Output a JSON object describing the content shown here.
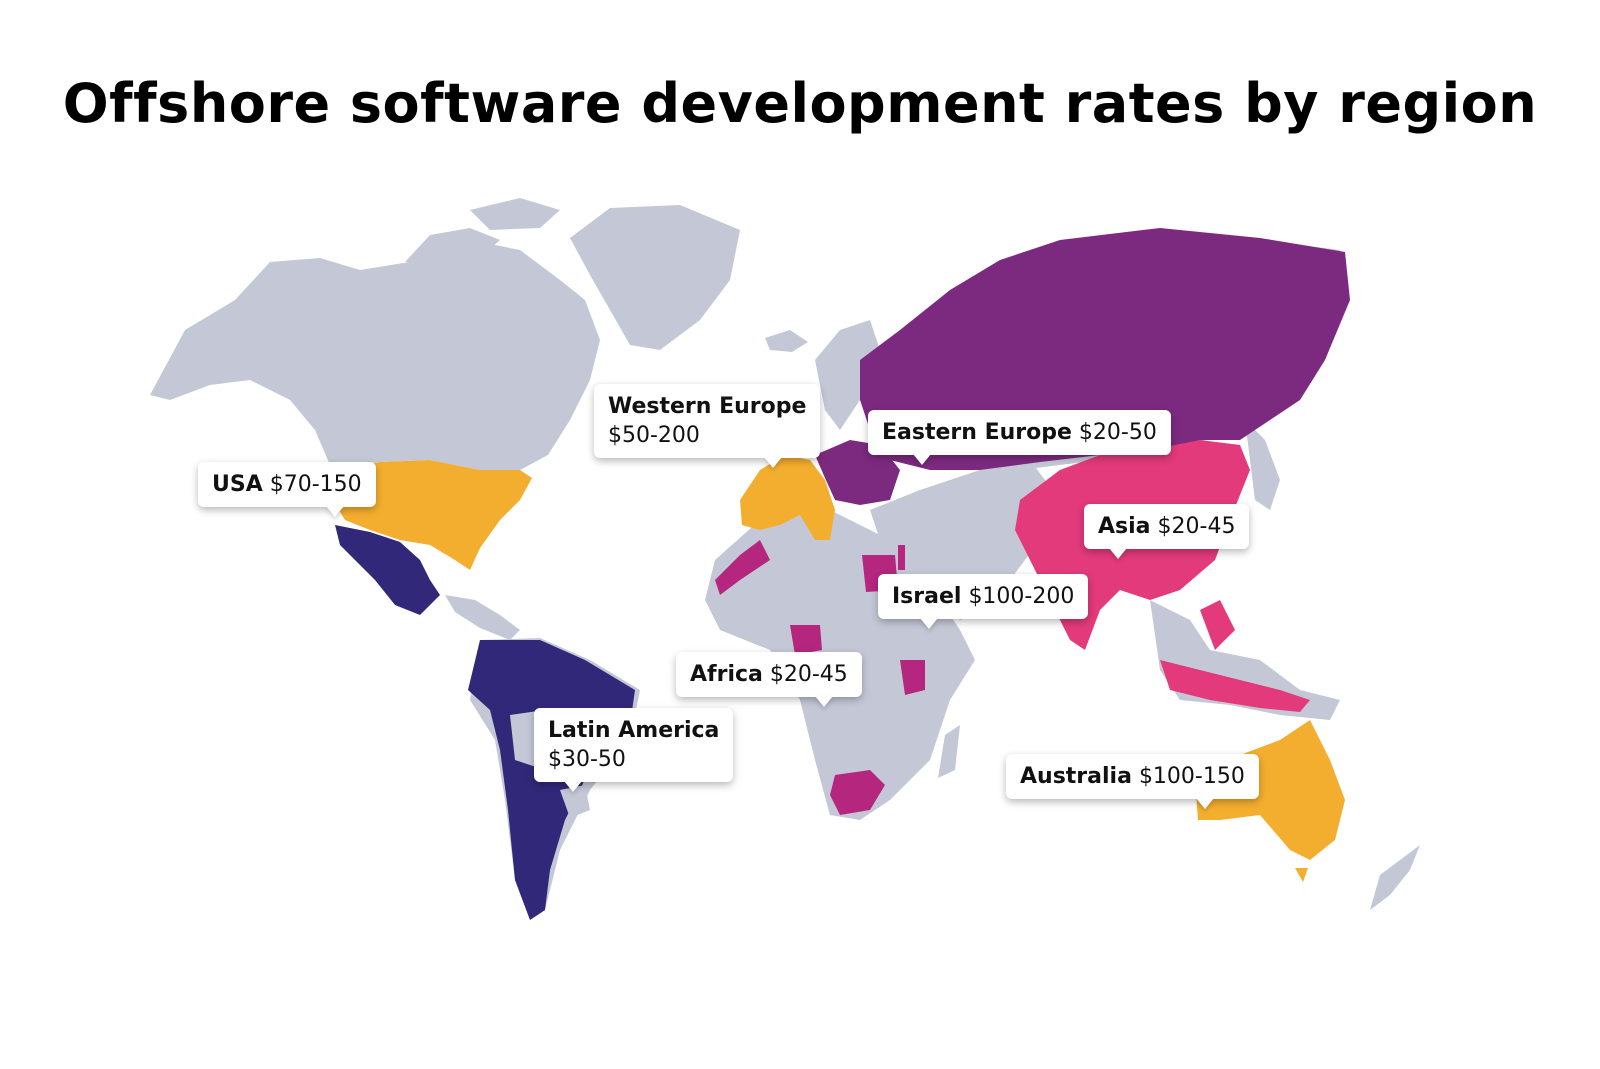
{
  "title": "Offshore software development rates by region",
  "colors": {
    "land": "#c4c8d6",
    "usa_western_europe_australia": "#f4ae2f",
    "latin_america": "#32287a",
    "eastern_europe": "#7c2a80",
    "asia": "#e23a7a",
    "africa_israel": "#b5267e"
  },
  "regions": [
    {
      "region": "USA",
      "rate": "$70-150"
    },
    {
      "region": "Western Europe",
      "rate": "$50-200"
    },
    {
      "region": "Eastern Europe",
      "rate": "$20-50"
    },
    {
      "region": "Asia",
      "rate": "$20-45"
    },
    {
      "region": "Israel",
      "rate": "$100-200"
    },
    {
      "region": "Africa",
      "rate": "$20-45"
    },
    {
      "region": "Latin America",
      "rate": "$30-50"
    },
    {
      "region": "Australia",
      "rate": "$100-150"
    }
  ]
}
